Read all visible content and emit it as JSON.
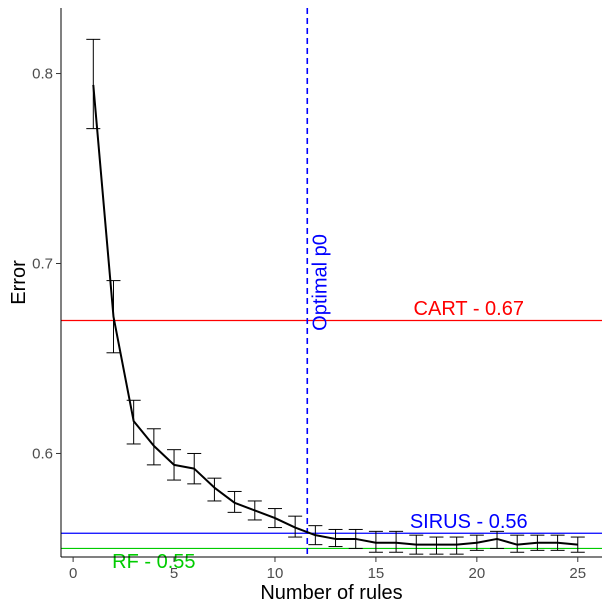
{
  "chart_data": {
    "type": "line",
    "title": "",
    "xlabel": "Number of rules",
    "ylabel": "Error",
    "xlim": [
      -0.6,
      26.2
    ],
    "ylim": [
      0.5455,
      0.8345
    ],
    "xticks": [
      0,
      5,
      10,
      15,
      20,
      25
    ],
    "yticks": [
      0.6,
      0.7,
      0.8
    ],
    "x_tick_labels": [
      "0",
      "5",
      "10",
      "15",
      "20",
      "25"
    ],
    "y_tick_labels": [
      "0.6",
      "0.7",
      "0.8"
    ],
    "grid": false,
    "series": [
      {
        "x": [
          1,
          2,
          3,
          4,
          5,
          6,
          7,
          8,
          9,
          10,
          11,
          12,
          13,
          14,
          15,
          16,
          17,
          18,
          19,
          20,
          21,
          22,
          23,
          24,
          25
        ],
        "y": [
          0.794,
          0.672,
          0.617,
          0.604,
          0.594,
          0.592,
          0.582,
          0.574,
          0.57,
          0.566,
          0.561,
          0.557,
          0.555,
          0.555,
          0.553,
          0.553,
          0.552,
          0.552,
          0.552,
          0.553,
          0.555,
          0.552,
          0.553,
          0.553,
          0.552
        ],
        "error_low": [
          0.771,
          0.653,
          0.605,
          0.594,
          0.586,
          0.584,
          0.575,
          0.569,
          0.565,
          0.561,
          0.556,
          0.552,
          0.551,
          0.55,
          0.548,
          0.548,
          0.547,
          0.547,
          0.547,
          0.549,
          0.55,
          0.548,
          0.549,
          0.549,
          0.548
        ],
        "error_high": [
          0.818,
          0.691,
          0.628,
          0.613,
          0.602,
          0.6,
          0.587,
          0.58,
          0.575,
          0.571,
          0.567,
          0.562,
          0.56,
          0.56,
          0.559,
          0.559,
          0.557,
          0.556,
          0.556,
          0.557,
          0.559,
          0.557,
          0.557,
          0.557,
          0.556
        ],
        "color": "#000000"
      }
    ],
    "reference_lines": [
      {
        "orientation": "horizontal",
        "value": 0.67,
        "label": "CART - 0.67",
        "color": "#ff0000",
        "label_x": 19.6,
        "label_y": 0.6765,
        "style": "solid"
      },
      {
        "orientation": "horizontal",
        "value": 0.558,
        "label": "SIRUS - 0.56",
        "color": "#0000ff",
        "label_x": 19.6,
        "label_y": 0.5645,
        "style": "solid"
      },
      {
        "orientation": "horizontal",
        "value": 0.55,
        "label": "RF - 0.55",
        "color": "#00cc00",
        "label_x": 4.0,
        "label_y": 0.5435,
        "style": "solid"
      },
      {
        "orientation": "vertical",
        "value": 11.6,
        "label": "Optimal p0",
        "color": "#0000ff",
        "label_x": 12.2,
        "label_y": 0.69,
        "style": "dashed"
      }
    ]
  }
}
